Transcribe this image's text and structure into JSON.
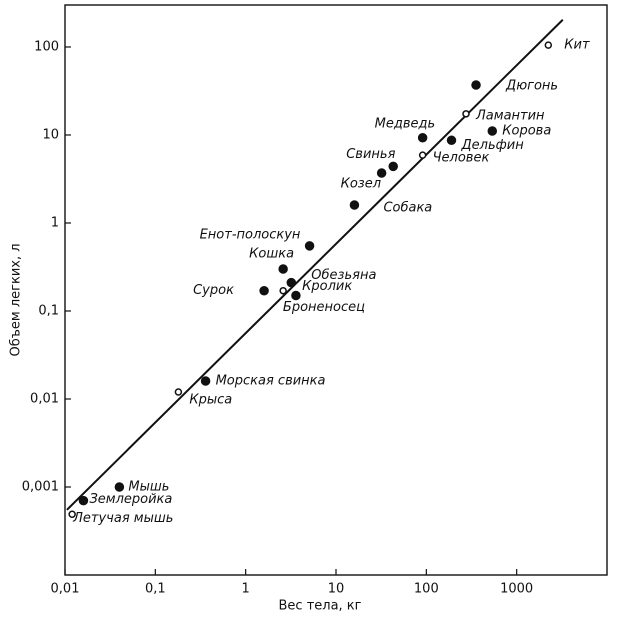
{
  "chart_data": {
    "type": "scatter",
    "x_label": "Вес тела, кг",
    "y_label": "Объем легких, л",
    "x_scale": "log",
    "y_scale": "log",
    "xlim": [
      0.01,
      10000
    ],
    "ylim": [
      0.0001,
      300
    ],
    "xticks": [
      {
        "value": 0.01,
        "label": "0,01"
      },
      {
        "value": 0.1,
        "label": "0,1"
      },
      1,
      10,
      100,
      1000
    ],
    "yticks": [
      {
        "value": 0.001,
        "label": "0,001"
      },
      {
        "value": 0.01,
        "label": "0,01"
      },
      {
        "value": 0.1,
        "label": "0,1"
      },
      1,
      10,
      100
    ],
    "color": "#111111",
    "labels": [
      "Кит",
      "Дюгонь",
      "Ламантин",
      "Медведь",
      "Корова",
      "Дельфин",
      "Человек",
      "Свинья",
      "Козел",
      "Собака",
      "Енот-полоскун",
      "Кошка",
      "Обезьяна",
      "Сурок",
      "Кролик",
      "Броненосец",
      "Морская свинка",
      "Крыса",
      "Мышь",
      "Землеройка",
      "Летучая мышь"
    ],
    "x": [
      2240,
      355,
      275,
      91,
      537,
      190,
      91,
      43,
      32,
      16,
      5.1,
      2.6,
      3.2,
      1.6,
      2.6,
      3.6,
      0.36,
      0.18,
      0.04,
      0.016,
      0.012
    ],
    "values": [
      105,
      37,
      17.4,
      9.3,
      11.1,
      8.7,
      5.9,
      4.4,
      3.7,
      1.6,
      0.55,
      0.3,
      0.21,
      0.17,
      0.17,
      0.15,
      0.016,
      0.012,
      0.001,
      0.0007,
      0.00049
    ],
    "markers": [
      "open",
      "filled",
      "open",
      "filled",
      "filled",
      "filled",
      "open",
      "filled",
      "filled",
      "filled",
      "filled",
      "filled",
      "filled",
      "filled",
      "open",
      "filled",
      "filled",
      "open",
      "filled",
      "filled",
      "open"
    ],
    "fit_line": {
      "x": [
        0.0105,
        3240
      ],
      "values": [
        0.00055,
        204
      ]
    }
  }
}
